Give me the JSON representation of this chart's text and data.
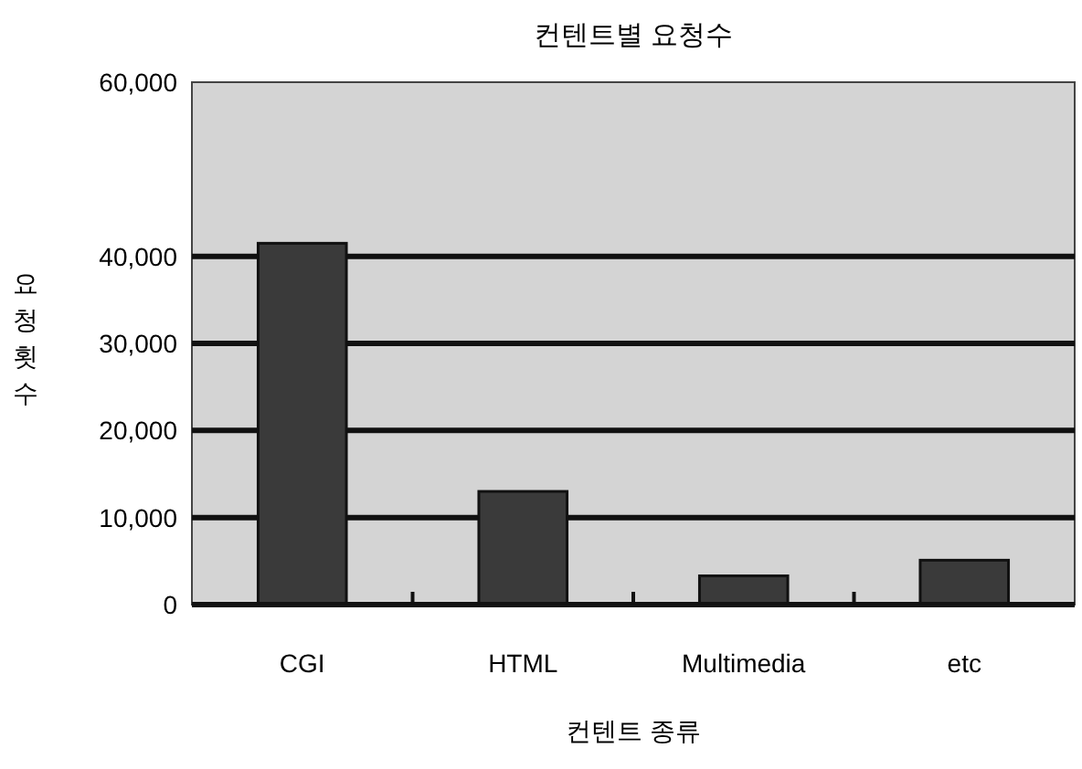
{
  "chart_data": {
    "type": "bar",
    "title": "컨텐트별 요청수",
    "xlabel": "컨텐트 종류",
    "ylabel": "요청횟수",
    "categories": [
      "CGI",
      "HTML",
      "Multimedia",
      "etc"
    ],
    "values": [
      41500,
      13000,
      3300,
      5100
    ],
    "color": "#3a3a3a",
    "ylim": [
      0,
      60000
    ],
    "yticks": [
      0,
      {
        "value": 10000,
        "label": "10,000"
      },
      {
        "value": 20000,
        "label": "20,000"
      },
      {
        "value": 30000,
        "label": "30,000"
      },
      {
        "value": 40000,
        "label": "40,000"
      },
      {
        "value": 60000,
        "label": "60,000"
      }
    ],
    "grid": "y"
  }
}
